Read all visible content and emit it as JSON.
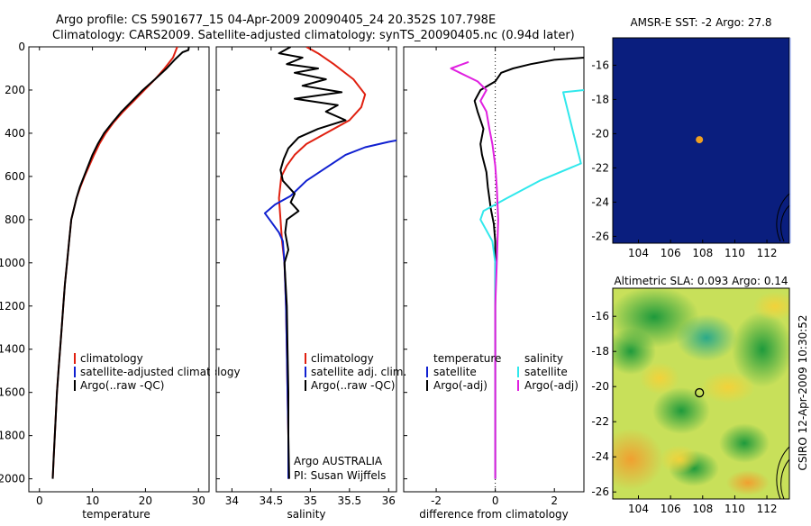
{
  "header": {
    "title1": "Argo profile: CS 5901677_15 04-Apr-2009 20090405_24 20.352S 107.798E",
    "title2": "Climatology: CARS2009. Satellite-adjusted climatology: synTS_20090405.nc (0.94d later)"
  },
  "side_label": "CSIRO 12-Apr-2009 10:30:52",
  "colors": {
    "climatology": "#e02010",
    "satellite_adj": "#1020d0",
    "argo": "#000000",
    "cyan": "#30e8ec",
    "magenta": "#e020e0",
    "sst_bg": "#0a1e7e",
    "float": "#f0a020"
  },
  "chart_data": [
    {
      "type": "line",
      "xlabel": "temperature",
      "ylabel": "",
      "xlim": [
        -2,
        32
      ],
      "ylim": [
        2060,
        0
      ],
      "xticks": [
        0,
        10,
        20,
        30
      ],
      "yticks": [
        0,
        200,
        400,
        600,
        800,
        1000,
        1200,
        1400,
        1600,
        1800,
        2000
      ],
      "legend": [
        "climatology",
        "satellite-adjusted climatology",
        "Argo(..raw -QC)"
      ],
      "series": [
        {
          "name": "climatology",
          "color": "climatology",
          "points": [
            [
              26,
              0
            ],
            [
              25.2,
              50
            ],
            [
              23.6,
              100
            ],
            [
              21.8,
              150
            ],
            [
              19.8,
              200
            ],
            [
              17.8,
              250
            ],
            [
              15.8,
              300
            ],
            [
              14,
              350
            ],
            [
              12.5,
              400
            ],
            [
              11.3,
              450
            ],
            [
              10.3,
              500
            ],
            [
              9.4,
              550
            ],
            [
              8.5,
              600
            ],
            [
              7.7,
              650
            ],
            [
              7,
              700
            ],
            [
              6.5,
              750
            ],
            [
              6,
              800
            ],
            [
              5.6,
              900
            ],
            [
              5.2,
              1000
            ],
            [
              4.8,
              1100
            ],
            [
              4.5,
              1200
            ],
            [
              4.2,
              1300
            ],
            [
              3.9,
              1400
            ],
            [
              3.6,
              1500
            ],
            [
              3.3,
              1600
            ],
            [
              3.1,
              1700
            ],
            [
              2.9,
              1800
            ],
            [
              2.7,
              1900
            ],
            [
              2.5,
              2000
            ]
          ]
        },
        {
          "name": "Argo(..raw -QC)",
          "color": "argo",
          "points": [
            [
              28.2,
              0
            ],
            [
              28.1,
              15
            ],
            [
              27,
              25
            ],
            [
              25.5,
              60
            ],
            [
              24,
              100
            ],
            [
              21.8,
              150
            ],
            [
              19.5,
              200
            ],
            [
              17.5,
              250
            ],
            [
              15.5,
              300
            ],
            [
              13.8,
              350
            ],
            [
              12.2,
              400
            ],
            [
              11,
              450
            ],
            [
              10,
              500
            ],
            [
              9.2,
              550
            ],
            [
              8.4,
              600
            ],
            [
              7.6,
              650
            ],
            [
              7,
              700
            ],
            [
              6.5,
              750
            ],
            [
              6,
              800
            ],
            [
              5.6,
              900
            ],
            [
              5.2,
              1000
            ],
            [
              4.8,
              1100
            ],
            [
              4.5,
              1200
            ],
            [
              4.2,
              1300
            ],
            [
              3.9,
              1400
            ],
            [
              3.6,
              1500
            ],
            [
              3.3,
              1600
            ],
            [
              3.1,
              1700
            ],
            [
              2.9,
              1800
            ],
            [
              2.7,
              1900
            ],
            [
              2.5,
              2000
            ]
          ]
        }
      ]
    },
    {
      "type": "line",
      "xlabel": "salinity",
      "ylabel": "",
      "xlim": [
        33.8,
        36.1
      ],
      "ylim": [
        2060,
        0
      ],
      "xticks": [
        34,
        34.5,
        35,
        35.5,
        36
      ],
      "legend": [
        "climatology",
        "satellite adj. clim.",
        "Argo(..raw -QC)"
      ],
      "annotations": [
        "Argo AUSTRALIA",
        "PI: Susan Wijffels"
      ],
      "series": [
        {
          "name": "climatology",
          "color": "climatology",
          "points": [
            [
              34.95,
              0
            ],
            [
              35.1,
              30
            ],
            [
              35.3,
              80
            ],
            [
              35.55,
              150
            ],
            [
              35.7,
              220
            ],
            [
              35.65,
              280
            ],
            [
              35.5,
              340
            ],
            [
              35.2,
              400
            ],
            [
              34.95,
              450
            ],
            [
              34.8,
              500
            ],
            [
              34.7,
              550
            ],
            [
              34.63,
              600
            ],
            [
              34.6,
              700
            ],
            [
              34.62,
              800
            ],
            [
              34.64,
              900
            ],
            [
              34.67,
              1000
            ],
            [
              34.69,
              1200
            ],
            [
              34.7,
              1400
            ],
            [
              34.71,
              1600
            ],
            [
              34.72,
              1800
            ],
            [
              34.72,
              2000
            ]
          ]
        },
        {
          "name": "satellite adj. clim.",
          "color": "satellite_adj",
          "points": [
            [
              36.15,
              430
            ],
            [
              36.0,
              440
            ],
            [
              35.7,
              465
            ],
            [
              35.45,
              500
            ],
            [
              35.2,
              560
            ],
            [
              34.95,
              620
            ],
            [
              34.75,
              690
            ],
            [
              34.55,
              730
            ],
            [
              34.42,
              770
            ],
            [
              34.5,
              810
            ],
            [
              34.6,
              860
            ],
            [
              34.65,
              900
            ],
            [
              34.67,
              1000
            ],
            [
              34.69,
              1200
            ],
            [
              34.7,
              1400
            ],
            [
              34.71,
              1600
            ],
            [
              34.72,
              1800
            ],
            [
              34.72,
              2000
            ]
          ]
        },
        {
          "name": "Argo(..raw -QC)",
          "color": "argo",
          "points": [
            [
              34.75,
              0
            ],
            [
              34.6,
              30
            ],
            [
              34.9,
              50
            ],
            [
              34.7,
              80
            ],
            [
              35.1,
              100
            ],
            [
              34.8,
              120
            ],
            [
              35.2,
              150
            ],
            [
              34.9,
              180
            ],
            [
              35.4,
              210
            ],
            [
              34.8,
              240
            ],
            [
              35.35,
              270
            ],
            [
              35.2,
              300
            ],
            [
              35.45,
              340
            ],
            [
              35.1,
              380
            ],
            [
              34.85,
              420
            ],
            [
              34.72,
              470
            ],
            [
              34.66,
              520
            ],
            [
              34.62,
              570
            ],
            [
              34.65,
              620
            ],
            [
              34.8,
              680
            ],
            [
              34.75,
              720
            ],
            [
              34.85,
              760
            ],
            [
              34.7,
              800
            ],
            [
              34.68,
              860
            ],
            [
              34.72,
              940
            ],
            [
              34.67,
              1000
            ],
            [
              34.7,
              1200
            ],
            [
              34.71,
              1400
            ],
            [
              34.72,
              1600
            ],
            [
              34.72,
              1800
            ],
            [
              34.73,
              2000
            ]
          ]
        }
      ]
    },
    {
      "type": "line",
      "xlabel": "difference from climatology",
      "ylabel": "",
      "xlim": [
        -3.1,
        3.0
      ],
      "ylim": [
        2060,
        0
      ],
      "xticks": [
        -2,
        0,
        2
      ],
      "legend": [
        "temperature",
        "satellite",
        "Argo(-adj)",
        "salinity",
        "satellite",
        "Argo(-adj)"
      ],
      "series": [
        {
          "name": "temperature Argo(-adj)",
          "color": "argo",
          "points": [
            [
              3.0,
              50
            ],
            [
              2.0,
              60
            ],
            [
              1.2,
              80
            ],
            [
              0.6,
              100
            ],
            [
              0.2,
              120
            ],
            [
              0,
              160
            ],
            [
              -0.5,
              200
            ],
            [
              -0.7,
              250
            ],
            [
              -0.6,
              300
            ],
            [
              -0.4,
              380
            ],
            [
              -0.5,
              450
            ],
            [
              -0.45,
              500
            ],
            [
              -0.3,
              580
            ],
            [
              -0.25,
              650
            ],
            [
              -0.15,
              750
            ],
            [
              -0.05,
              820
            ],
            [
              0,
              900
            ],
            [
              0,
              1200
            ],
            [
              0,
              1600
            ],
            [
              0,
              2000
            ]
          ]
        },
        {
          "name": "temperature satellite",
          "color": "cyan",
          "points": [
            [
              3.0,
              200
            ],
            [
              2.3,
              210
            ],
            [
              2.9,
              540
            ],
            [
              1.5,
              620
            ],
            [
              0.4,
              700
            ],
            [
              -0.4,
              760
            ],
            [
              -0.5,
              800
            ],
            [
              -0.1,
              900
            ],
            [
              0,
              1000
            ],
            [
              0,
              1500
            ],
            [
              0,
              2000
            ]
          ]
        },
        {
          "name": "salinity Argo(-adj)",
          "color": "magenta",
          "points": [
            [
              -0.9,
              70
            ],
            [
              -1.5,
              100
            ],
            [
              -1.2,
              120
            ],
            [
              -0.6,
              160
            ],
            [
              -0.3,
              200
            ],
            [
              -0.5,
              250
            ],
            [
              -0.3,
              300
            ],
            [
              -0.2,
              380
            ],
            [
              -0.1,
              450
            ],
            [
              0,
              550
            ],
            [
              0.05,
              650
            ],
            [
              0.1,
              800
            ],
            [
              0.05,
              1000
            ],
            [
              0,
              1200
            ],
            [
              0,
              1600
            ],
            [
              0,
              2000
            ]
          ]
        }
      ]
    }
  ],
  "map_sst": {
    "title": "AMSR-E SST: -2 Argo: 27.8",
    "xlim": [
      102.4,
      113.4
    ],
    "ylim": [
      -26.4,
      -14.4
    ],
    "xticks": [
      104,
      106,
      108,
      110,
      112
    ],
    "yticks": [
      -16,
      -18,
      -20,
      -22,
      -24,
      -26
    ],
    "float_lon": 107.798,
    "float_lat": -20.352
  },
  "map_sla": {
    "title": "Altimetric SLA: 0.093 Argo: 0.14",
    "xlim": [
      102.4,
      113.4
    ],
    "ylim": [
      -26.4,
      -14.4
    ],
    "xticks": [
      104,
      106,
      108,
      110,
      112
    ],
    "yticks": [
      -16,
      -18,
      -20,
      -22,
      -24,
      -26
    ],
    "float_lon": 107.798,
    "float_lat": -20.352
  }
}
